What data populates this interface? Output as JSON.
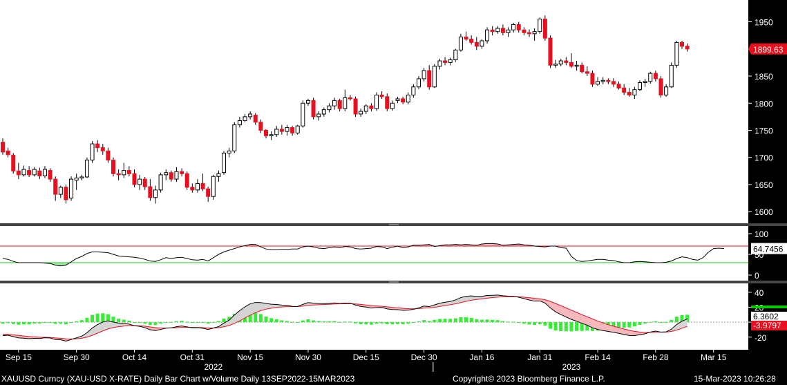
{
  "chart_data": [
    {
      "type": "candlestick",
      "panel": "price",
      "y_ticks": [
        1950,
        1900,
        1850,
        1800,
        1750,
        1700,
        1650,
        1600
      ],
      "ylim": [
        1585,
        1980
      ],
      "last_value_label": "1899.63",
      "colors": {
        "up": "#ffffff",
        "down": "#e8101e",
        "last_tag": "#e8101e"
      },
      "candles": [
        {
          "o": 1728,
          "h": 1735,
          "l": 1705,
          "c": 1710
        },
        {
          "o": 1712,
          "h": 1718,
          "l": 1700,
          "c": 1705
        },
        {
          "o": 1704,
          "h": 1708,
          "l": 1670,
          "c": 1675
        },
        {
          "o": 1675,
          "h": 1690,
          "l": 1660,
          "c": 1668
        },
        {
          "o": 1668,
          "h": 1685,
          "l": 1665,
          "c": 1678
        },
        {
          "o": 1676,
          "h": 1684,
          "l": 1664,
          "c": 1668
        },
        {
          "o": 1668,
          "h": 1682,
          "l": 1665,
          "c": 1678
        },
        {
          "o": 1675,
          "h": 1681,
          "l": 1660,
          "c": 1666
        },
        {
          "o": 1666,
          "h": 1684,
          "l": 1662,
          "c": 1678
        },
        {
          "o": 1676,
          "h": 1680,
          "l": 1655,
          "c": 1660
        },
        {
          "o": 1660,
          "h": 1665,
          "l": 1620,
          "c": 1632
        },
        {
          "o": 1632,
          "h": 1648,
          "l": 1625,
          "c": 1645
        },
        {
          "o": 1645,
          "h": 1650,
          "l": 1615,
          "c": 1622
        },
        {
          "o": 1625,
          "h": 1665,
          "l": 1620,
          "c": 1660
        },
        {
          "o": 1658,
          "h": 1670,
          "l": 1640,
          "c": 1662
        },
        {
          "o": 1662,
          "h": 1668,
          "l": 1658,
          "c": 1664
        },
        {
          "o": 1664,
          "h": 1700,
          "l": 1662,
          "c": 1695
        },
        {
          "o": 1695,
          "h": 1730,
          "l": 1690,
          "c": 1725
        },
        {
          "o": 1725,
          "h": 1732,
          "l": 1710,
          "c": 1718
        },
        {
          "o": 1718,
          "h": 1725,
          "l": 1705,
          "c": 1712
        },
        {
          "o": 1712,
          "h": 1718,
          "l": 1690,
          "c": 1695
        },
        {
          "o": 1695,
          "h": 1700,
          "l": 1665,
          "c": 1670
        },
        {
          "o": 1670,
          "h": 1678,
          "l": 1658,
          "c": 1668
        },
        {
          "o": 1668,
          "h": 1690,
          "l": 1662,
          "c": 1676
        },
        {
          "o": 1676,
          "h": 1684,
          "l": 1665,
          "c": 1670
        },
        {
          "o": 1670,
          "h": 1678,
          "l": 1645,
          "c": 1650
        },
        {
          "o": 1650,
          "h": 1668,
          "l": 1640,
          "c": 1660
        },
        {
          "o": 1660,
          "h": 1664,
          "l": 1640,
          "c": 1646
        },
        {
          "o": 1646,
          "h": 1660,
          "l": 1620,
          "c": 1626
        },
        {
          "o": 1626,
          "h": 1648,
          "l": 1615,
          "c": 1640
        },
        {
          "o": 1640,
          "h": 1672,
          "l": 1635,
          "c": 1668
        },
        {
          "o": 1668,
          "h": 1678,
          "l": 1658,
          "c": 1672
        },
        {
          "o": 1672,
          "h": 1676,
          "l": 1655,
          "c": 1660
        },
        {
          "o": 1660,
          "h": 1682,
          "l": 1655,
          "c": 1674
        },
        {
          "o": 1674,
          "h": 1680,
          "l": 1665,
          "c": 1670
        },
        {
          "o": 1670,
          "h": 1674,
          "l": 1640,
          "c": 1645
        },
        {
          "o": 1645,
          "h": 1652,
          "l": 1635,
          "c": 1640
        },
        {
          "o": 1640,
          "h": 1660,
          "l": 1635,
          "c": 1652
        },
        {
          "o": 1652,
          "h": 1670,
          "l": 1638,
          "c": 1642
        },
        {
          "o": 1642,
          "h": 1646,
          "l": 1618,
          "c": 1628
        },
        {
          "o": 1628,
          "h": 1668,
          "l": 1622,
          "c": 1665
        },
        {
          "o": 1665,
          "h": 1676,
          "l": 1655,
          "c": 1670
        },
        {
          "o": 1672,
          "h": 1712,
          "l": 1668,
          "c": 1708
        },
        {
          "o": 1708,
          "h": 1718,
          "l": 1700,
          "c": 1712
        },
        {
          "o": 1712,
          "h": 1765,
          "l": 1708,
          "c": 1760
        },
        {
          "o": 1760,
          "h": 1775,
          "l": 1755,
          "c": 1768
        },
        {
          "o": 1768,
          "h": 1780,
          "l": 1765,
          "c": 1775
        },
        {
          "o": 1775,
          "h": 1785,
          "l": 1770,
          "c": 1780
        },
        {
          "o": 1778,
          "h": 1782,
          "l": 1760,
          "c": 1765
        },
        {
          "o": 1765,
          "h": 1770,
          "l": 1745,
          "c": 1750
        },
        {
          "o": 1750,
          "h": 1752,
          "l": 1735,
          "c": 1740
        },
        {
          "o": 1740,
          "h": 1748,
          "l": 1732,
          "c": 1742
        },
        {
          "o": 1742,
          "h": 1758,
          "l": 1738,
          "c": 1752
        },
        {
          "o": 1752,
          "h": 1760,
          "l": 1742,
          "c": 1748
        },
        {
          "o": 1748,
          "h": 1760,
          "l": 1740,
          "c": 1755
        },
        {
          "o": 1755,
          "h": 1758,
          "l": 1740,
          "c": 1745
        },
        {
          "o": 1745,
          "h": 1760,
          "l": 1742,
          "c": 1758
        },
        {
          "o": 1758,
          "h": 1805,
          "l": 1755,
          "c": 1800
        },
        {
          "o": 1800,
          "h": 1808,
          "l": 1795,
          "c": 1805
        },
        {
          "o": 1805,
          "h": 1810,
          "l": 1770,
          "c": 1775
        },
        {
          "o": 1775,
          "h": 1785,
          "l": 1768,
          "c": 1780
        },
        {
          "o": 1780,
          "h": 1792,
          "l": 1775,
          "c": 1788
        },
        {
          "o": 1788,
          "h": 1800,
          "l": 1783,
          "c": 1795
        },
        {
          "o": 1795,
          "h": 1810,
          "l": 1788,
          "c": 1805
        },
        {
          "o": 1805,
          "h": 1808,
          "l": 1785,
          "c": 1790
        },
        {
          "o": 1790,
          "h": 1825,
          "l": 1785,
          "c": 1810
        },
        {
          "o": 1810,
          "h": 1815,
          "l": 1805,
          "c": 1808
        },
        {
          "o": 1808,
          "h": 1812,
          "l": 1775,
          "c": 1780
        },
        {
          "o": 1780,
          "h": 1790,
          "l": 1775,
          "c": 1785
        },
        {
          "o": 1785,
          "h": 1798,
          "l": 1780,
          "c": 1795
        },
        {
          "o": 1795,
          "h": 1800,
          "l": 1785,
          "c": 1790
        },
        {
          "o": 1790,
          "h": 1820,
          "l": 1786,
          "c": 1815
        },
        {
          "o": 1815,
          "h": 1822,
          "l": 1808,
          "c": 1812
        },
        {
          "o": 1812,
          "h": 1818,
          "l": 1785,
          "c": 1790
        },
        {
          "o": 1790,
          "h": 1805,
          "l": 1786,
          "c": 1800
        },
        {
          "o": 1805,
          "h": 1812,
          "l": 1800,
          "c": 1808
        },
        {
          "o": 1808,
          "h": 1812,
          "l": 1798,
          "c": 1802
        },
        {
          "o": 1802,
          "h": 1820,
          "l": 1798,
          "c": 1815
        },
        {
          "o": 1815,
          "h": 1835,
          "l": 1810,
          "c": 1830
        },
        {
          "o": 1830,
          "h": 1850,
          "l": 1826,
          "c": 1845
        },
        {
          "o": 1845,
          "h": 1865,
          "l": 1840,
          "c": 1860
        },
        {
          "o": 1860,
          "h": 1870,
          "l": 1825,
          "c": 1830
        },
        {
          "o": 1830,
          "h": 1872,
          "l": 1828,
          "c": 1868
        },
        {
          "o": 1868,
          "h": 1882,
          "l": 1862,
          "c": 1878
        },
        {
          "o": 1878,
          "h": 1885,
          "l": 1870,
          "c": 1875
        },
        {
          "o": 1875,
          "h": 1884,
          "l": 1870,
          "c": 1880
        },
        {
          "o": 1880,
          "h": 1900,
          "l": 1876,
          "c": 1898
        },
        {
          "o": 1898,
          "h": 1928,
          "l": 1895,
          "c": 1922
        },
        {
          "o": 1922,
          "h": 1932,
          "l": 1915,
          "c": 1918
        },
        {
          "o": 1918,
          "h": 1925,
          "l": 1908,
          "c": 1912
        },
        {
          "o": 1912,
          "h": 1922,
          "l": 1898,
          "c": 1905
        },
        {
          "o": 1905,
          "h": 1918,
          "l": 1900,
          "c": 1915
        },
        {
          "o": 1915,
          "h": 1940,
          "l": 1910,
          "c": 1935
        },
        {
          "o": 1935,
          "h": 1942,
          "l": 1925,
          "c": 1932
        },
        {
          "o": 1932,
          "h": 1942,
          "l": 1928,
          "c": 1938
        },
        {
          "o": 1938,
          "h": 1945,
          "l": 1925,
          "c": 1930
        },
        {
          "o": 1930,
          "h": 1940,
          "l": 1922,
          "c": 1935
        },
        {
          "o": 1935,
          "h": 1948,
          "l": 1930,
          "c": 1945
        },
        {
          "o": 1945,
          "h": 1950,
          "l": 1930,
          "c": 1935
        },
        {
          "o": 1935,
          "h": 1940,
          "l": 1925,
          "c": 1930
        },
        {
          "o": 1930,
          "h": 1936,
          "l": 1922,
          "c": 1928
        },
        {
          "o": 1928,
          "h": 1938,
          "l": 1915,
          "c": 1932
        },
        {
          "o": 1932,
          "h": 1958,
          "l": 1928,
          "c": 1955
        },
        {
          "o": 1955,
          "h": 1962,
          "l": 1915,
          "c": 1920
        },
        {
          "o": 1920,
          "h": 1925,
          "l": 1865,
          "c": 1870
        },
        {
          "o": 1870,
          "h": 1880,
          "l": 1865,
          "c": 1872
        },
        {
          "o": 1872,
          "h": 1882,
          "l": 1868,
          "c": 1878
        },
        {
          "o": 1878,
          "h": 1885,
          "l": 1870,
          "c": 1875
        },
        {
          "o": 1875,
          "h": 1892,
          "l": 1865,
          "c": 1868
        },
        {
          "o": 1868,
          "h": 1878,
          "l": 1860,
          "c": 1870
        },
        {
          "o": 1870,
          "h": 1875,
          "l": 1855,
          "c": 1858
        },
        {
          "o": 1858,
          "h": 1868,
          "l": 1850,
          "c": 1855
        },
        {
          "o": 1855,
          "h": 1860,
          "l": 1830,
          "c": 1835
        },
        {
          "o": 1835,
          "h": 1848,
          "l": 1832,
          "c": 1840
        },
        {
          "o": 1840,
          "h": 1848,
          "l": 1835,
          "c": 1842
        },
        {
          "o": 1842,
          "h": 1846,
          "l": 1835,
          "c": 1840
        },
        {
          "o": 1840,
          "h": 1846,
          "l": 1830,
          "c": 1835
        },
        {
          "o": 1835,
          "h": 1840,
          "l": 1825,
          "c": 1828
        },
        {
          "o": 1828,
          "h": 1835,
          "l": 1815,
          "c": 1820
        },
        {
          "o": 1820,
          "h": 1828,
          "l": 1812,
          "c": 1815
        },
        {
          "o": 1815,
          "h": 1830,
          "l": 1808,
          "c": 1825
        },
        {
          "o": 1825,
          "h": 1842,
          "l": 1822,
          "c": 1838
        },
        {
          "o": 1838,
          "h": 1845,
          "l": 1830,
          "c": 1840
        },
        {
          "o": 1840,
          "h": 1858,
          "l": 1836,
          "c": 1855
        },
        {
          "o": 1855,
          "h": 1860,
          "l": 1840,
          "c": 1845
        },
        {
          "o": 1845,
          "h": 1850,
          "l": 1810,
          "c": 1815
        },
        {
          "o": 1815,
          "h": 1835,
          "l": 1812,
          "c": 1830
        },
        {
          "o": 1830,
          "h": 1875,
          "l": 1828,
          "c": 1870
        },
        {
          "o": 1870,
          "h": 1915,
          "l": 1865,
          "c": 1912
        },
        {
          "o": 1912,
          "h": 1915,
          "l": 1900,
          "c": 1905
        },
        {
          "o": 1905,
          "h": 1910,
          "l": 1895,
          "c": 1900
        }
      ]
    },
    {
      "type": "line",
      "panel": "oscillator",
      "y_ticks": [
        100,
        50,
        0
      ],
      "ylim": [
        -10,
        115
      ],
      "upper_band": 70,
      "lower_band": 30,
      "last_value_label": "64.7456",
      "colors": {
        "line": "#000000",
        "upper_band": "#e8101e",
        "lower_band": "#22c422",
        "fill_high": "#f4b8bd",
        "fill_low": "#a6e6a6",
        "last_tag": "#ffffff"
      },
      "values": [
        40,
        38,
        33,
        30,
        30,
        30,
        30,
        30,
        29,
        28,
        24,
        22,
        24,
        32,
        40,
        45,
        52,
        56,
        56,
        55,
        54,
        50,
        46,
        45,
        44,
        43,
        41,
        38,
        34,
        33,
        37,
        42,
        40,
        42,
        43,
        40,
        37,
        36,
        38,
        34,
        42,
        50,
        56,
        60,
        64,
        68,
        71,
        74,
        74,
        68,
        63,
        61,
        61,
        62,
        62,
        63,
        63,
        68,
        70,
        68,
        65,
        64,
        66,
        68,
        66,
        69,
        68,
        64,
        63,
        64,
        65,
        69,
        68,
        64,
        67,
        70,
        66,
        68,
        72,
        72,
        73,
        74,
        69,
        71,
        73,
        73,
        74,
        73,
        74,
        73,
        72,
        75,
        76,
        76,
        75,
        72,
        73,
        74,
        75,
        73,
        72,
        70,
        69,
        68,
        70,
        70,
        66,
        65,
        45,
        35,
        33,
        34,
        36,
        38,
        38,
        36,
        35,
        32,
        30,
        30,
        32,
        33,
        32,
        31,
        30,
        30,
        31,
        34,
        40,
        44,
        42,
        38,
        36,
        42,
        55,
        64,
        65,
        64
      ]
    },
    {
      "type": "line",
      "panel": "macd",
      "y_ticks": [
        40,
        20,
        0,
        -20
      ],
      "ylim": [
        -35,
        50
      ],
      "last_value_labels": [
        "6.3602",
        "-3.9797"
      ],
      "colors": {
        "macd": "#000000",
        "signal": "#e8101e",
        "hist": "#33ee33",
        "fill_above": "#d4d4d4",
        "fill_below": "#f4b8bd",
        "zero": "#9a9a9a",
        "tag_macd": "#ffffff",
        "tag_signal": "#e8101e",
        "tag_hist": "#00cc00"
      },
      "macd_start": -18,
      "signal_start": -16,
      "histogram_last": 10.34
    },
    {
      "type": "axis",
      "panel": "time",
      "month_labels": [
        {
          "i": 3,
          "t": "Sep 15"
        },
        {
          "i": 14,
          "t": "Sep 30"
        },
        {
          "i": 25,
          "t": "Oct 14"
        },
        {
          "i": 36,
          "t": "Oct 31"
        },
        {
          "i": 47,
          "t": "Nov 15"
        },
        {
          "i": 58,
          "t": "Nov 30"
        },
        {
          "i": 69,
          "t": "Dec 15"
        },
        {
          "i": 80,
          "t": "Dec 30"
        },
        {
          "i": 91,
          "t": "Jan 16"
        },
        {
          "i": 102,
          "t": "Jan 31"
        },
        {
          "i": 113,
          "t": "Feb 14"
        },
        {
          "i": 124,
          "t": "Feb 28"
        },
        {
          "i": 135,
          "t": "Mar 15"
        }
      ],
      "year_labels": [
        {
          "i": 40,
          "t": "2022"
        },
        {
          "i": 108,
          "t": "2023"
        }
      ],
      "year_break_index": 82
    }
  ],
  "footer": {
    "left": "XAUUSD Curncy (XAU-USD X-RATE) Daily Bar Chart w/Volume  Daily 13SEP2022-15MAR2023",
    "center": "Copyright© 2023 Bloomberg Finance L.P.",
    "right": "15-Mar-2023 10:26:28"
  }
}
